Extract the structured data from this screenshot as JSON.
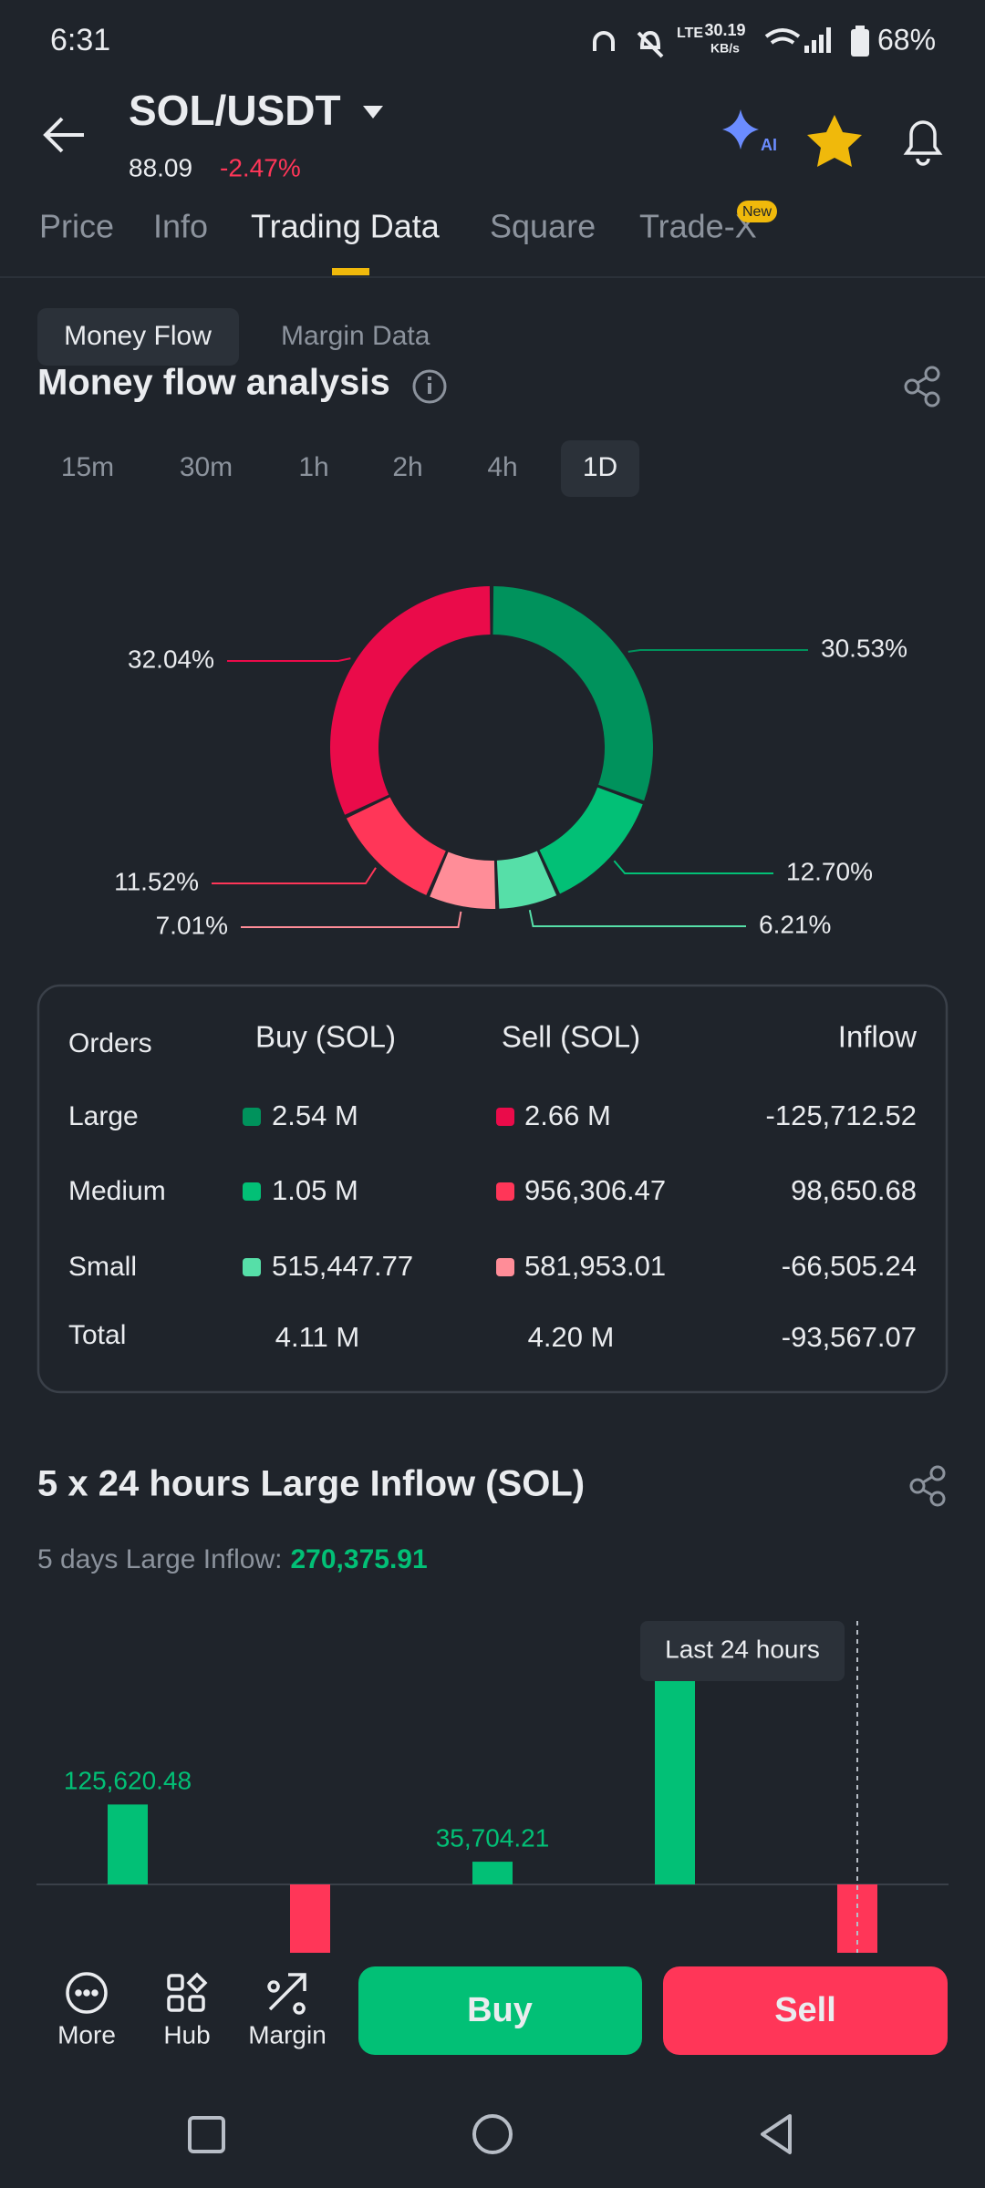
{
  "status_bar": {
    "time": "6:31",
    "net_type": "LTE",
    "net_speed": "30.19",
    "net_unit": "KB/s",
    "battery": "68%"
  },
  "header": {
    "pair": "SOL/USDT",
    "price": "88.09",
    "change": "-2.47%",
    "ai_badge": "AI",
    "new_badge": "New",
    "tabs": [
      "Price",
      "Info",
      "Trading Data",
      "Square",
      "Trade-X"
    ]
  },
  "sub_tabs": [
    "Money Flow",
    "Margin Data"
  ],
  "money_flow": {
    "title": "Money flow analysis",
    "intervals": [
      "15m",
      "30m",
      "1h",
      "2h",
      "4h",
      "1D"
    ]
  },
  "table": {
    "headers": [
      "Orders",
      "Buy (SOL)",
      "Sell (SOL)",
      "Inflow"
    ],
    "rows": [
      [
        "Large",
        "2.54 M",
        "2.66 M",
        "-125,712.52"
      ],
      [
        "Medium",
        "1.05 M",
        "956,306.47",
        "98,650.68"
      ],
      [
        "Small",
        "515,447.77",
        "581,953.01",
        "-66,505.24"
      ],
      [
        "Total",
        "4.11 M",
        "4.20 M",
        "-93,567.07"
      ]
    ]
  },
  "chart_data": [
    {
      "type": "donut",
      "values": [
        30.53,
        12.7,
        6.21,
        7.01,
        11.52,
        32.04
      ],
      "value_labels": [
        "30.53%",
        "12.70%",
        "6.21%",
        "7.01%",
        "11.52%",
        "32.04%"
      ],
      "colors": [
        "#00925c",
        "#02c076",
        "#56dfa8",
        "#ff8d98",
        "#ff3658",
        "#ea0b4a"
      ]
    },
    {
      "type": "bar",
      "title": "5 x 24 hours Large Inflow (SOL)",
      "subtitle_label": "5 days Large Inflow:",
      "subtitle_value": "270,375.91",
      "values": [
        125620.48,
        -118000,
        35704.21,
        345000,
        -118000
      ],
      "value_labels": [
        "125,620.48",
        null,
        "35,704.21",
        null,
        null
      ],
      "ylim": [
        -150000,
        440000
      ],
      "positive_color": "#02c076",
      "negative_color": "#ff3658",
      "annotation": "Last 24 hours"
    }
  ],
  "bottom_bar": {
    "actions": [
      "More",
      "Hub",
      "Margin"
    ],
    "buy": "Buy",
    "sell": "Sell"
  }
}
